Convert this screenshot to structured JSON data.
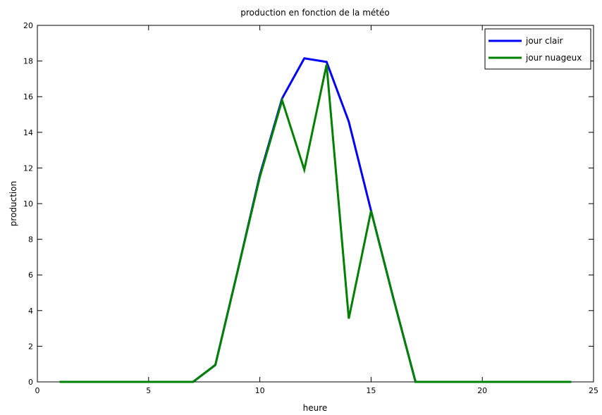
{
  "chart_data": {
    "type": "line",
    "title": "production en fonction de la météo",
    "xlabel": "heure",
    "ylabel": "production",
    "xlim": [
      0,
      25
    ],
    "ylim": [
      0,
      20
    ],
    "xticks": [
      0,
      5,
      10,
      15,
      20,
      25
    ],
    "yticks": [
      0,
      2,
      4,
      6,
      8,
      10,
      12,
      14,
      16,
      18,
      20
    ],
    "grid": false,
    "legend_position": "top-right",
    "x": [
      1,
      2,
      3,
      4,
      5,
      6,
      7,
      8,
      9,
      10,
      11,
      12,
      13,
      14,
      15,
      16,
      17,
      18,
      19,
      20,
      21,
      22,
      23,
      24
    ],
    "series": [
      {
        "name": "jour clair",
        "color": "#0000ff",
        "values": [
          0,
          0,
          0,
          0,
          0,
          0,
          0,
          0.95,
          6.2,
          11.6,
          15.9,
          18.15,
          17.95,
          14.6,
          9.6,
          4.7,
          0,
          0,
          0,
          0,
          0,
          0,
          0,
          0
        ]
      },
      {
        "name": "jour nuageux",
        "color": "#008000",
        "values": [
          0,
          0,
          0,
          0,
          0,
          0,
          0,
          0.95,
          6.2,
          11.5,
          15.8,
          11.9,
          17.8,
          3.55,
          9.6,
          4.7,
          0,
          0,
          0,
          0,
          0,
          0,
          0,
          0
        ]
      }
    ]
  }
}
